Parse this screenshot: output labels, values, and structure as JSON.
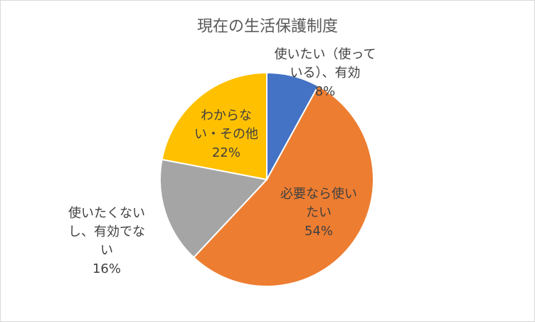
{
  "chart_data": {
    "type": "pie",
    "title": "現在の生活保護制度",
    "start_angle_deg": 0,
    "direction": "clockwise",
    "slices": [
      {
        "label_lines": [
          "使いたい（使って",
          "いる）、有効"
        ],
        "value": 8,
        "value_label": "8%",
        "color": "#4472C4"
      },
      {
        "label_lines": [
          "必要なら使い",
          "たい"
        ],
        "value": 54,
        "value_label": "54%",
        "color": "#ED7D31"
      },
      {
        "label_lines": [
          "使いたくない",
          "し、有効でな",
          "い"
        ],
        "value": 16,
        "value_label": "16%",
        "color": "#A5A5A5"
      },
      {
        "label_lines": [
          "わからな",
          "い・その他"
        ],
        "value": 22,
        "value_label": "22%",
        "color": "#FFC000"
      }
    ],
    "legend": "none",
    "data_labels": "category-and-percent"
  }
}
